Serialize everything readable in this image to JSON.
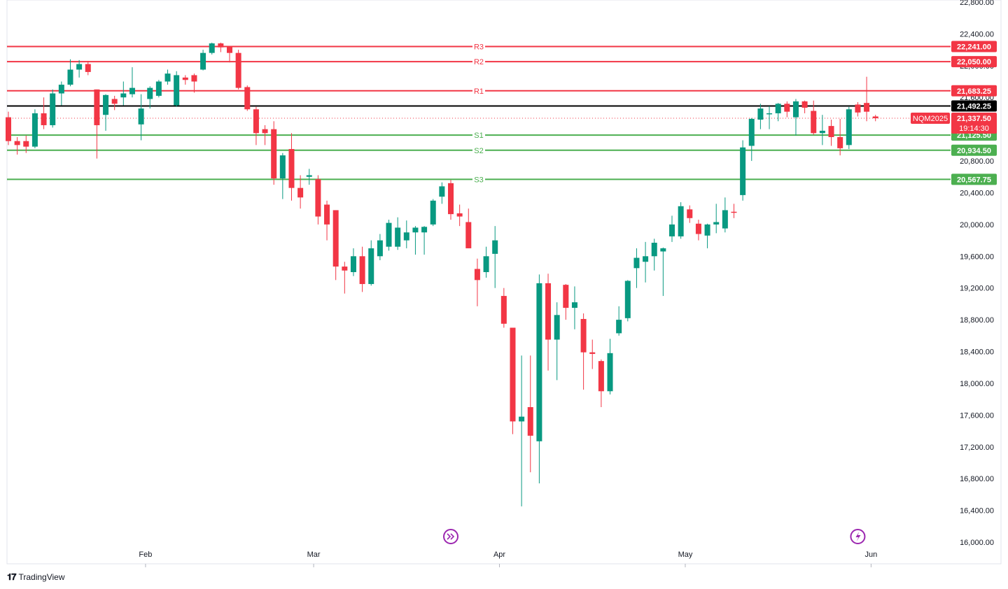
{
  "chart_data": {
    "type": "candlestick",
    "symbol": "NQM2025",
    "countdown": "19:14:30",
    "ylim": [
      16000,
      22800
    ],
    "yticks": [
      16000,
      16400,
      16800,
      17200,
      17600,
      18000,
      18400,
      18800,
      19200,
      19600,
      20000,
      20400,
      20800,
      21200,
      21600,
      22000,
      22400,
      22800
    ],
    "ytick_labels": [
      "16,000.00",
      "16,400.00",
      "16,800.00",
      "17,200.00",
      "17,600.00",
      "18,000.00",
      "18,400.00",
      "18,800.00",
      "19,200.00",
      "19,600.00",
      "20,000.00",
      "20,400.00",
      "20,800.00",
      "21,200.00",
      "21,600.00",
      "22,000.00",
      "22,400.00",
      "22,800.00"
    ],
    "xticks": [
      {
        "label": "Feb",
        "index": 15.5
      },
      {
        "label": "Mar",
        "index": 34.5
      },
      {
        "label": "Apr",
        "index": 55.5
      },
      {
        "label": "May",
        "index": 76.5
      },
      {
        "label": "Jun",
        "index": 97.5
      }
    ],
    "levels": [
      {
        "name": "R3",
        "value": 22241.0,
        "label": "22,241.00",
        "color": "#f23645"
      },
      {
        "name": "R2",
        "value": 22050.0,
        "label": "22,050.00",
        "color": "#f23645"
      },
      {
        "name": "R1",
        "value": 21683.25,
        "label": "21,683.25",
        "color": "#f23645"
      },
      {
        "name": "",
        "value": 21492.25,
        "label": "21,492.25",
        "color": "#000000"
      },
      {
        "name": "S1",
        "value": 21125.5,
        "label": "21,125.50",
        "color": "#4caf50"
      },
      {
        "name": "S2",
        "value": 20934.5,
        "label": "20,934.50",
        "color": "#4caf50"
      },
      {
        "name": "S3",
        "value": 20567.75,
        "label": "20,567.75",
        "color": "#4caf50"
      }
    ],
    "current_price": 21337.5,
    "current_price_label": "21,337.50",
    "colors": {
      "up": "#089981",
      "down": "#f23645",
      "grid": "#f0f3fa",
      "axis": "#131722"
    },
    "candles": [
      {
        "o": 21350,
        "h": 21420,
        "l": 21000,
        "c": 21050
      },
      {
        "o": 21050,
        "h": 21100,
        "l": 20880,
        "c": 21000
      },
      {
        "o": 21050,
        "h": 21120,
        "l": 20900,
        "c": 20980
      },
      {
        "o": 20980,
        "h": 21450,
        "l": 20960,
        "c": 21400
      },
      {
        "o": 21400,
        "h": 21600,
        "l": 21200,
        "c": 21250
      },
      {
        "o": 21250,
        "h": 21700,
        "l": 21220,
        "c": 21650
      },
      {
        "o": 21650,
        "h": 21800,
        "l": 21500,
        "c": 21760
      },
      {
        "o": 21760,
        "h": 22080,
        "l": 21740,
        "c": 21950
      },
      {
        "o": 21950,
        "h": 22070,
        "l": 21850,
        "c": 22020
      },
      {
        "o": 22020,
        "h": 22060,
        "l": 21880,
        "c": 21920
      },
      {
        "o": 21700,
        "h": 21700,
        "l": 20830,
        "c": 21250
      },
      {
        "o": 21380,
        "h": 21640,
        "l": 21180,
        "c": 21630
      },
      {
        "o": 21580,
        "h": 21620,
        "l": 21440,
        "c": 21520
      },
      {
        "o": 21600,
        "h": 21800,
        "l": 21500,
        "c": 21650
      },
      {
        "o": 21640,
        "h": 21980,
        "l": 21600,
        "c": 21720
      },
      {
        "o": 21260,
        "h": 21640,
        "l": 21060,
        "c": 21460
      },
      {
        "o": 21580,
        "h": 21740,
        "l": 21460,
        "c": 21720
      },
      {
        "o": 21620,
        "h": 21820,
        "l": 21600,
        "c": 21800
      },
      {
        "o": 21800,
        "h": 21950,
        "l": 21760,
        "c": 21900
      },
      {
        "o": 21500,
        "h": 21930,
        "l": 21480,
        "c": 21880
      },
      {
        "o": 21850,
        "h": 21880,
        "l": 21760,
        "c": 21820
      },
      {
        "o": 21880,
        "h": 21900,
        "l": 21660,
        "c": 21800
      },
      {
        "o": 21950,
        "h": 22200,
        "l": 21940,
        "c": 22160
      },
      {
        "o": 22160,
        "h": 22290,
        "l": 22140,
        "c": 22280
      },
      {
        "o": 22280,
        "h": 22290,
        "l": 22170,
        "c": 22230
      },
      {
        "o": 22240,
        "h": 22250,
        "l": 22040,
        "c": 22160
      },
      {
        "o": 22160,
        "h": 22200,
        "l": 21700,
        "c": 21720
      },
      {
        "o": 21730,
        "h": 21750,
        "l": 21430,
        "c": 21450
      },
      {
        "o": 21450,
        "h": 21480,
        "l": 21000,
        "c": 21150
      },
      {
        "o": 21200,
        "h": 21250,
        "l": 21000,
        "c": 21150
      },
      {
        "o": 21200,
        "h": 21300,
        "l": 20500,
        "c": 20580
      },
      {
        "o": 20580,
        "h": 20900,
        "l": 20320,
        "c": 20870
      },
      {
        "o": 20950,
        "h": 21150,
        "l": 20300,
        "c": 20460
      },
      {
        "o": 20460,
        "h": 20620,
        "l": 20200,
        "c": 20340
      },
      {
        "o": 20600,
        "h": 20700,
        "l": 20500,
        "c": 20620
      },
      {
        "o": 20570,
        "h": 20620,
        "l": 20000,
        "c": 20100
      },
      {
        "o": 20250,
        "h": 20300,
        "l": 19800,
        "c": 20000
      },
      {
        "o": 20180,
        "h": 20180,
        "l": 19300,
        "c": 19470
      },
      {
        "o": 19470,
        "h": 19530,
        "l": 19130,
        "c": 19420
      },
      {
        "o": 19400,
        "h": 19700,
        "l": 19350,
        "c": 19600
      },
      {
        "o": 19600,
        "h": 19720,
        "l": 19150,
        "c": 19250
      },
      {
        "o": 19250,
        "h": 19800,
        "l": 19230,
        "c": 19700
      },
      {
        "o": 19600,
        "h": 19880,
        "l": 19550,
        "c": 19800
      },
      {
        "o": 19720,
        "h": 20060,
        "l": 19670,
        "c": 20020
      },
      {
        "o": 19720,
        "h": 20090,
        "l": 19680,
        "c": 19960
      },
      {
        "o": 19800,
        "h": 20050,
        "l": 19700,
        "c": 19900
      },
      {
        "o": 19900,
        "h": 19980,
        "l": 19620,
        "c": 19960
      },
      {
        "o": 19900,
        "h": 19980,
        "l": 19620,
        "c": 19970
      },
      {
        "o": 20000,
        "h": 20320,
        "l": 19980,
        "c": 20300
      },
      {
        "o": 20350,
        "h": 20530,
        "l": 20260,
        "c": 20480
      },
      {
        "o": 20520,
        "h": 20560,
        "l": 20060,
        "c": 20130
      },
      {
        "o": 20140,
        "h": 20250,
        "l": 19980,
        "c": 20100
      },
      {
        "o": 20030,
        "h": 20200,
        "l": 19700,
        "c": 19700
      },
      {
        "o": 19440,
        "h": 19570,
        "l": 18970,
        "c": 19300
      },
      {
        "o": 19400,
        "h": 19720,
        "l": 19330,
        "c": 19600
      },
      {
        "o": 19630,
        "h": 19980,
        "l": 19200,
        "c": 19800
      },
      {
        "o": 19100,
        "h": 19200,
        "l": 18700,
        "c": 18750
      },
      {
        "o": 18700,
        "h": 18700,
        "l": 17360,
        "c": 17520
      },
      {
        "o": 17520,
        "h": 18350,
        "l": 16450,
        "c": 17580
      },
      {
        "o": 17700,
        "h": 18350,
        "l": 16880,
        "c": 17340
      },
      {
        "o": 17270,
        "h": 19370,
        "l": 16740,
        "c": 19260
      },
      {
        "o": 19260,
        "h": 19380,
        "l": 18160,
        "c": 18550
      },
      {
        "o": 18550,
        "h": 19020,
        "l": 18040,
        "c": 18860
      },
      {
        "o": 19240,
        "h": 19250,
        "l": 18800,
        "c": 18950
      },
      {
        "o": 18950,
        "h": 19220,
        "l": 18680,
        "c": 19020
      },
      {
        "o": 18810,
        "h": 18880,
        "l": 17920,
        "c": 18390
      },
      {
        "o": 18390,
        "h": 18550,
        "l": 18180,
        "c": 18370
      },
      {
        "o": 18280,
        "h": 18300,
        "l": 17700,
        "c": 17900
      },
      {
        "o": 17900,
        "h": 18560,
        "l": 17860,
        "c": 18380
      },
      {
        "o": 18630,
        "h": 18970,
        "l": 18600,
        "c": 18800
      },
      {
        "o": 18820,
        "h": 19300,
        "l": 18780,
        "c": 19290
      },
      {
        "o": 19450,
        "h": 19700,
        "l": 19200,
        "c": 19580
      },
      {
        "o": 19530,
        "h": 19780,
        "l": 19270,
        "c": 19600
      },
      {
        "o": 19600,
        "h": 19820,
        "l": 19420,
        "c": 19770
      },
      {
        "o": 19660,
        "h": 19710,
        "l": 19100,
        "c": 19700
      },
      {
        "o": 19850,
        "h": 20110,
        "l": 19780,
        "c": 20000
      },
      {
        "o": 19850,
        "h": 20280,
        "l": 19820,
        "c": 20230
      },
      {
        "o": 20190,
        "h": 20240,
        "l": 20020,
        "c": 20080
      },
      {
        "o": 20010,
        "h": 20060,
        "l": 19800,
        "c": 19880
      },
      {
        "o": 19860,
        "h": 20010,
        "l": 19700,
        "c": 20000
      },
      {
        "o": 20000,
        "h": 20260,
        "l": 19890,
        "c": 20030
      },
      {
        "o": 19950,
        "h": 20340,
        "l": 19900,
        "c": 20180
      },
      {
        "o": 20160,
        "h": 20260,
        "l": 20080,
        "c": 20150
      },
      {
        "o": 20370,
        "h": 21060,
        "l": 20300,
        "c": 20970
      },
      {
        "o": 20990,
        "h": 21340,
        "l": 20800,
        "c": 21330
      },
      {
        "o": 21320,
        "h": 21520,
        "l": 21200,
        "c": 21460
      },
      {
        "o": 21390,
        "h": 21490,
        "l": 21200,
        "c": 21400
      },
      {
        "o": 21400,
        "h": 21530,
        "l": 21300,
        "c": 21520
      },
      {
        "o": 21520,
        "h": 21550,
        "l": 21350,
        "c": 21420
      },
      {
        "o": 21350,
        "h": 21580,
        "l": 21120,
        "c": 21550
      },
      {
        "o": 21550,
        "h": 21560,
        "l": 21400,
        "c": 21470
      },
      {
        "o": 21430,
        "h": 21560,
        "l": 21130,
        "c": 21150
      },
      {
        "o": 21150,
        "h": 21380,
        "l": 21000,
        "c": 21180
      },
      {
        "o": 21240,
        "h": 21320,
        "l": 20990,
        "c": 21100
      },
      {
        "o": 21100,
        "h": 21330,
        "l": 20870,
        "c": 20960
      },
      {
        "o": 21000,
        "h": 21480,
        "l": 20950,
        "c": 21450
      },
      {
        "o": 21510,
        "h": 21540,
        "l": 21360,
        "c": 21410
      },
      {
        "o": 21530,
        "h": 21860,
        "l": 21300,
        "c": 21420
      },
      {
        "o": 21360,
        "h": 21380,
        "l": 21300,
        "c": 21337.5
      }
    ]
  },
  "footer": {
    "brand": "TradingView"
  },
  "markers": [
    {
      "name": "replay-marker-icon",
      "index": 50
    },
    {
      "name": "flash-marker-icon",
      "index": 96
    }
  ]
}
